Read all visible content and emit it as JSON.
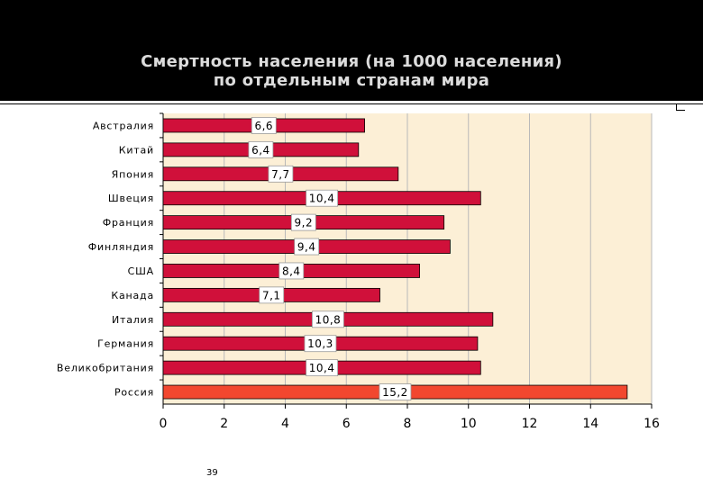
{
  "title_line1": "Смертность населения (на 1000 населения)",
  "title_line2": "по отдельным странам мира",
  "page_number": "39",
  "colors": {
    "header_bg": "#000000",
    "plot_bg": "#fcefd6",
    "bar": "#d0103a",
    "bar_highlight": "#f2472f",
    "grid": "#b9b9b9"
  },
  "chart_data": {
    "type": "bar",
    "orientation": "horizontal",
    "categories": [
      "Австралия",
      "Китай",
      "Япония",
      "Швеция",
      "Франция",
      "Финляндия",
      "США",
      "Канада",
      "Италия",
      "Германия",
      "Великобритания",
      "Россия"
    ],
    "values": [
      6.6,
      6.4,
      7.7,
      10.4,
      9.2,
      9.4,
      8.4,
      7.1,
      10.8,
      10.3,
      10.4,
      15.2
    ],
    "data_labels": [
      "6,6",
      "6,4",
      "7,7",
      "10,4",
      "9,2",
      "9,4",
      "8,4",
      "7,1",
      "10,8",
      "10,3",
      "10,4",
      "15,2"
    ],
    "highlight": "Россия",
    "xlim": [
      0,
      16
    ],
    "xticks": [
      0,
      2,
      4,
      6,
      8,
      10,
      12,
      14,
      16
    ],
    "xlabel": "",
    "ylabel": "",
    "grid": "vertical",
    "legend": "none"
  }
}
